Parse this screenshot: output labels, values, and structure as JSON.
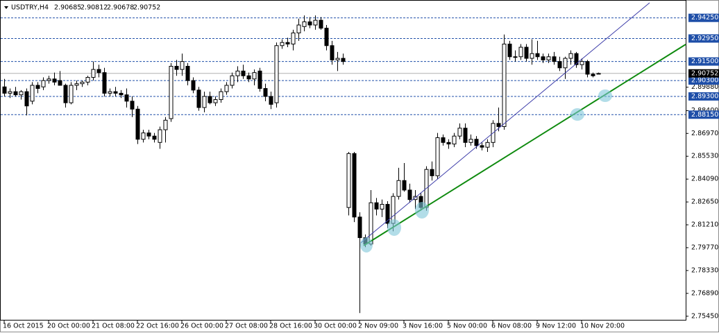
{
  "chart_data": {
    "type": "candlestick",
    "symbol": "USDTRY,H4",
    "quote": [
      2.90685,
      2.90812,
      2.90678,
      2.90752
    ],
    "ylim": [
      2.7518,
      2.952
    ],
    "yticks": [
      {
        "value": 2.8988,
        "label": "2.89880"
      },
      {
        "value": 2.884,
        "label": "2.88400"
      },
      {
        "value": 2.8697,
        "label": "2.86970"
      },
      {
        "value": 2.8553,
        "label": "2.85530"
      },
      {
        "value": 2.8409,
        "label": "2.84090"
      },
      {
        "value": 2.8265,
        "label": "2.82650"
      },
      {
        "value": 2.8121,
        "label": "2.81210"
      },
      {
        "value": 2.7977,
        "label": "2.79770"
      },
      {
        "value": 2.7833,
        "label": "2.78330"
      },
      {
        "value": 2.7689,
        "label": "2.76890"
      },
      {
        "value": 2.7545,
        "label": "2.75450"
      }
    ],
    "levels": [
      {
        "value": 2.9425,
        "label": "2.94250"
      },
      {
        "value": 2.9295,
        "label": "2.92950"
      },
      {
        "value": 2.915,
        "label": "2.91500"
      },
      {
        "value": 2.903,
        "label": "2.90300"
      },
      {
        "value": 2.893,
        "label": "2.89300"
      },
      {
        "value": 2.8815,
        "label": "2.88150"
      }
    ],
    "last_price": 2.90752,
    "level_color": "#1f4fa8",
    "categories": [
      "16 Oct 2015",
      null,
      null,
      null,
      null,
      null,
      null,
      null,
      "20 Oct 00:00",
      null,
      null,
      null,
      null,
      null,
      null,
      null,
      "21 Oct 08:00",
      null,
      null,
      null,
      null,
      null,
      null,
      null,
      "22 Oct 16:00",
      null,
      null,
      null,
      null,
      null,
      null,
      null,
      "26 Oct 00:00",
      null,
      null,
      null,
      null,
      null,
      null,
      null,
      "27 Oct 08:00",
      null,
      null,
      null,
      null,
      null,
      null,
      null,
      "28 Oct 16:00",
      null,
      null,
      null,
      null,
      null,
      null,
      null,
      "30 Oct 00:00",
      null,
      null,
      null,
      null,
      null,
      null,
      null,
      "2 Nov 09:00",
      null,
      null,
      null,
      null,
      null,
      null,
      null,
      "3 Nov 16:00",
      null,
      null,
      null,
      null,
      null,
      null,
      null,
      "5 Nov 00:00",
      null,
      null,
      null,
      null,
      null,
      null,
      null,
      "6 Nov 08:00",
      null,
      null,
      null,
      null,
      null,
      null,
      null,
      "9 Nov 12:00",
      null,
      null,
      null,
      null,
      null,
      null,
      null,
      "10 Nov 20:00",
      null,
      null,
      null
    ],
    "open": [
      2.899,
      2.895,
      2.896,
      2.894,
      2.896,
      2.89,
      2.9,
      2.899,
      2.903,
      2.904,
      2.903,
      2.9,
      2.889,
      2.9,
      2.901,
      2.902,
      2.905,
      2.91,
      2.908,
      2.895,
      2.896,
      2.895,
      2.894,
      2.89,
      2.885,
      2.866,
      2.87,
      2.868,
      2.864,
      2.872,
      2.879,
      2.912,
      2.91,
      2.912,
      2.903,
      2.897,
      2.886,
      2.893,
      2.889,
      2.891,
      2.896,
      2.9,
      2.906,
      2.909,
      2.906,
      2.904,
      2.909,
      2.898,
      2.893,
      2.889,
      2.925,
      2.927,
      2.926,
      2.933,
      2.937,
      2.94,
      2.938,
      2.941,
      2.936,
      2.925,
      2.916,
      2.917,
      2.823,
      2.857,
      2.817,
      2.804,
      2.8,
      2.826,
      2.822,
      2.825,
      2.813,
      2.83,
      2.84,
      2.834,
      2.828,
      2.83,
      2.823,
      2.847,
      2.843,
      2.867,
      2.864,
      2.863,
      2.868,
      2.873,
      2.864,
      2.866,
      2.862,
      2.861,
      2.864,
      2.876,
      2.874,
      2.926,
      2.918,
      2.918,
      2.924,
      2.917,
      2.92,
      2.918,
      2.916,
      2.918,
      2.915,
      2.911,
      2.917,
      2.92,
      2.913,
      2.915,
      2.907,
      2.907
    ],
    "high": [
      2.904,
      2.898,
      2.899,
      2.897,
      2.898,
      2.902,
      2.902,
      2.905,
      2.906,
      2.908,
      2.909,
      2.901,
      2.902,
      2.903,
      2.903,
      2.906,
      2.915,
      2.913,
      2.911,
      2.898,
      2.899,
      2.897,
      2.898,
      2.893,
      2.887,
      2.872,
      2.872,
      2.87,
      2.874,
      2.88,
      2.914,
      2.916,
      2.92,
      2.914,
      2.905,
      2.899,
      2.896,
      2.896,
      2.893,
      2.898,
      2.902,
      2.908,
      2.912,
      2.913,
      2.908,
      2.91,
      2.911,
      2.901,
      2.896,
      2.927,
      2.929,
      2.93,
      2.935,
      2.942,
      2.944,
      2.943,
      2.944,
      2.943,
      2.938,
      2.928,
      2.921,
      2.92,
      2.858,
      2.858,
      2.82,
      2.806,
      2.834,
      2.829,
      2.828,
      2.827,
      2.832,
      2.848,
      2.851,
      2.838,
      2.834,
      2.832,
      2.849,
      2.852,
      2.87,
      2.869,
      2.866,
      2.87,
      2.876,
      2.876,
      2.869,
      2.868,
      2.864,
      2.866,
      2.878,
      2.886,
      2.932,
      2.928,
      2.922,
      2.926,
      2.926,
      2.929,
      2.928,
      2.92,
      2.92,
      2.921,
      2.918,
      2.918,
      2.922,
      2.921,
      2.917,
      2.916,
      2.908,
      2.908
    ],
    "low": [
      2.893,
      2.892,
      2.893,
      2.891,
      2.881,
      2.888,
      2.895,
      2.897,
      2.901,
      2.9,
      2.9,
      2.886,
      2.888,
      2.897,
      2.899,
      2.9,
      2.903,
      2.905,
      2.893,
      2.893,
      2.893,
      2.892,
      2.886,
      2.88,
      2.863,
      2.864,
      2.866,
      2.864,
      2.86,
      2.864,
      2.877,
      2.906,
      2.906,
      2.9,
      2.895,
      2.884,
      2.883,
      2.888,
      2.887,
      2.889,
      2.894,
      2.898,
      2.902,
      2.904,
      2.902,
      2.9,
      2.896,
      2.89,
      2.885,
      2.886,
      2.923,
      2.924,
      2.922,
      2.928,
      2.934,
      2.936,
      2.935,
      2.935,
      2.922,
      2.913,
      2.909,
      2.913,
      2.818,
      2.8138,
      2.7565,
      2.798,
      2.799,
      2.818,
      2.817,
      2.81,
      2.808,
      2.828,
      2.833,
      2.826,
      2.822,
      2.821,
      2.821,
      2.84,
      2.841,
      2.862,
      2.86,
      2.861,
      2.866,
      2.861,
      2.862,
      2.86,
      2.859,
      2.858,
      2.861,
      2.871,
      2.872,
      2.916,
      2.915,
      2.916,
      2.915,
      2.913,
      2.916,
      2.914,
      2.914,
      2.913,
      2.909,
      2.904,
      2.913,
      2.911,
      2.91,
      2.905,
      2.905,
      2.907
    ],
    "close": [
      2.895,
      2.896,
      2.894,
      2.896,
      2.887,
      2.9,
      2.898,
      2.903,
      2.904,
      2.902,
      2.9,
      2.889,
      2.9,
      2.901,
      2.902,
      2.905,
      2.91,
      2.908,
      2.895,
      2.896,
      2.895,
      2.894,
      2.89,
      2.885,
      2.866,
      2.87,
      2.868,
      2.866,
      2.872,
      2.878,
      2.912,
      2.91,
      2.915,
      2.903,
      2.897,
      2.886,
      2.893,
      2.889,
      2.891,
      2.896,
      2.9,
      2.906,
      2.909,
      2.906,
      2.904,
      2.908,
      2.898,
      2.893,
      2.888,
      2.925,
      2.927,
      2.926,
      2.933,
      2.938,
      2.94,
      2.938,
      2.941,
      2.936,
      2.925,
      2.916,
      2.917,
      2.915,
      2.857,
      2.817,
      2.804,
      2.8,
      2.826,
      2.822,
      2.825,
      2.813,
      2.83,
      2.84,
      2.834,
      2.828,
      2.83,
      2.823,
      2.847,
      2.843,
      2.867,
      2.864,
      2.863,
      2.868,
      2.873,
      2.864,
      2.866,
      2.862,
      2.861,
      2.864,
      2.876,
      2.874,
      2.926,
      2.918,
      2.918,
      2.924,
      2.917,
      2.92,
      2.918,
      2.916,
      2.918,
      2.915,
      2.911,
      2.917,
      2.92,
      2.913,
      2.915,
      2.907,
      2.906,
      2.9075
    ]
  }
}
